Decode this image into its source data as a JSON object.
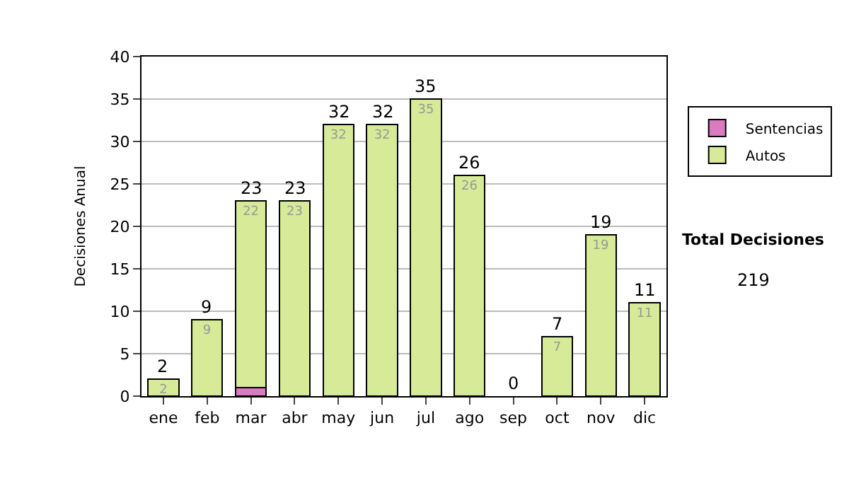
{
  "chart_data": {
    "type": "bar",
    "stacked": true,
    "ylabel": "Decisiones Anual",
    "categories": [
      "ene",
      "feb",
      "mar",
      "abr",
      "may",
      "jun",
      "jul",
      "ago",
      "sep",
      "oct",
      "nov",
      "dic"
    ],
    "series": [
      {
        "name": "Sentencias",
        "color": "#d97bbf",
        "values": [
          null,
          null,
          1,
          null,
          null,
          null,
          null,
          null,
          null,
          null,
          null,
          null
        ]
      },
      {
        "name": "Autos",
        "color": "#d6ea97",
        "values": [
          2,
          9,
          22,
          23,
          32,
          32,
          35,
          26,
          null,
          7,
          19,
          11
        ],
        "value_labels": [
          "2",
          "9",
          "22",
          "23",
          "32",
          "32",
          "35",
          "26",
          null,
          "7",
          "19",
          "11"
        ]
      }
    ],
    "totals": [
      "2",
      "9",
      "23",
      "23",
      "32",
      "32",
      "35",
      "26",
      "0",
      "7",
      "19",
      "11"
    ],
    "ylim": [
      0,
      40
    ],
    "yticks": [
      0,
      5,
      10,
      15,
      20,
      25,
      30,
      35,
      40
    ],
    "grid": "y",
    "legend": "right",
    "annotations": [
      "Total Decisiones",
      "219"
    ]
  }
}
